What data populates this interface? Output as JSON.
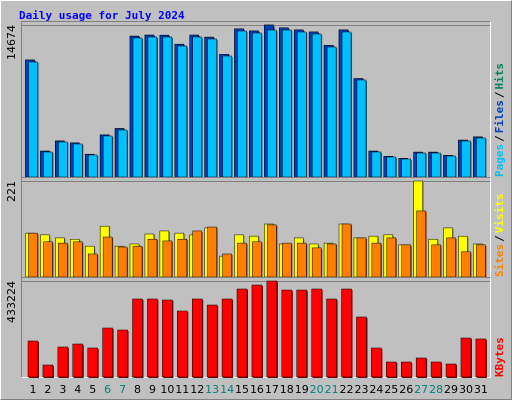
{
  "title": "Daily usage for July 2024",
  "legend_separator": "/",
  "weekend_color": "#008080",
  "label_color": "#000000",
  "chart_data": [
    {
      "type": "bar",
      "ylim": [
        0,
        14674
      ],
      "yticks": [
        14674
      ],
      "series": [
        {
          "name": "Hits",
          "color": "#00805c",
          "values": [
            11300,
            2500,
            3480,
            3290,
            2200,
            4060,
            4680,
            13600,
            13700,
            13690,
            12820,
            13700,
            13500,
            11850,
            14300,
            14100,
            14674,
            14400,
            14200,
            14000,
            12720,
            14200,
            9500,
            2500,
            2000,
            1800,
            2400,
            2400,
            2100,
            3560,
            3870
          ]
        },
        {
          "name": "Files",
          "color": "#0040c0",
          "values": [
            11300,
            2500,
            3480,
            3290,
            2200,
            4060,
            4680,
            13600,
            13700,
            13690,
            12820,
            13700,
            13500,
            11850,
            14300,
            14100,
            14674,
            14400,
            14200,
            14000,
            12720,
            14200,
            9500,
            2500,
            2000,
            1800,
            2400,
            2400,
            2100,
            3560,
            3870
          ]
        },
        {
          "name": "Pages",
          "color": "#00c0ff",
          "values": [
            11102,
            2413,
            3379,
            3186,
            2124,
            3958,
            4537,
            13419,
            13516,
            13516,
            12647,
            13516,
            13323,
            11681,
            14095,
            13902,
            14191,
            14191,
            13998,
            13805,
            12550,
            13998,
            9364,
            2413,
            1931,
            1738,
            2317,
            2317,
            2027,
            3475,
            3765
          ]
        }
      ]
    },
    {
      "type": "bar",
      "ylim": [
        0,
        221
      ],
      "yticks": [
        221
      ],
      "series": [
        {
          "name": "Visits",
          "color": "#ffff00",
          "values": [
            101,
            97,
            90,
            87,
            71,
            117,
            71,
            76,
            99,
            106,
            101,
            97,
            113,
            48,
            97,
            94,
            122,
            76,
            90,
            76,
            78,
            122,
            90,
            94,
            97,
            74,
            221,
            87,
            113,
            94,
            76
          ]
        },
        {
          "name": "Sites",
          "color": "#ff8000",
          "values": [
            101,
            81,
            78,
            81,
            53,
            92,
            69,
            71,
            87,
            83,
            87,
            106,
            115,
            53,
            78,
            81,
            120,
            78,
            78,
            67,
            76,
            122,
            90,
            78,
            90,
            74,
            152,
            74,
            90,
            58,
            74
          ]
        }
      ]
    },
    {
      "type": "bar",
      "ylim": [
        0,
        433224
      ],
      "yticks": [
        433224
      ],
      "categories": [
        "1",
        "2",
        "3",
        "4",
        "5",
        "6",
        "7",
        "8",
        "9",
        "10",
        "11",
        "12",
        "13",
        "14",
        "15",
        "16",
        "17",
        "18",
        "19",
        "20",
        "21",
        "22",
        "23",
        "24",
        "25",
        "26",
        "27",
        "28",
        "29",
        "30",
        "31"
      ],
      "weekends": [
        "6",
        "7",
        "13",
        "14",
        "20",
        "21",
        "27",
        "28"
      ],
      "series": [
        {
          "name": "KBytes",
          "color": "#ff0000",
          "values": [
            162459,
            54153,
            135382,
            148920,
            130869,
            221124,
            212099,
            351995,
            351995,
            347482,
            297842,
            351995,
            324918,
            351995,
            397122,
            415173,
            433224,
            392609,
            392609,
            397122,
            351995,
            397122,
            270765,
            130869,
            67691,
            67691,
            85740,
            67691,
            58666,
            175997,
            171484
          ]
        }
      ]
    }
  ]
}
